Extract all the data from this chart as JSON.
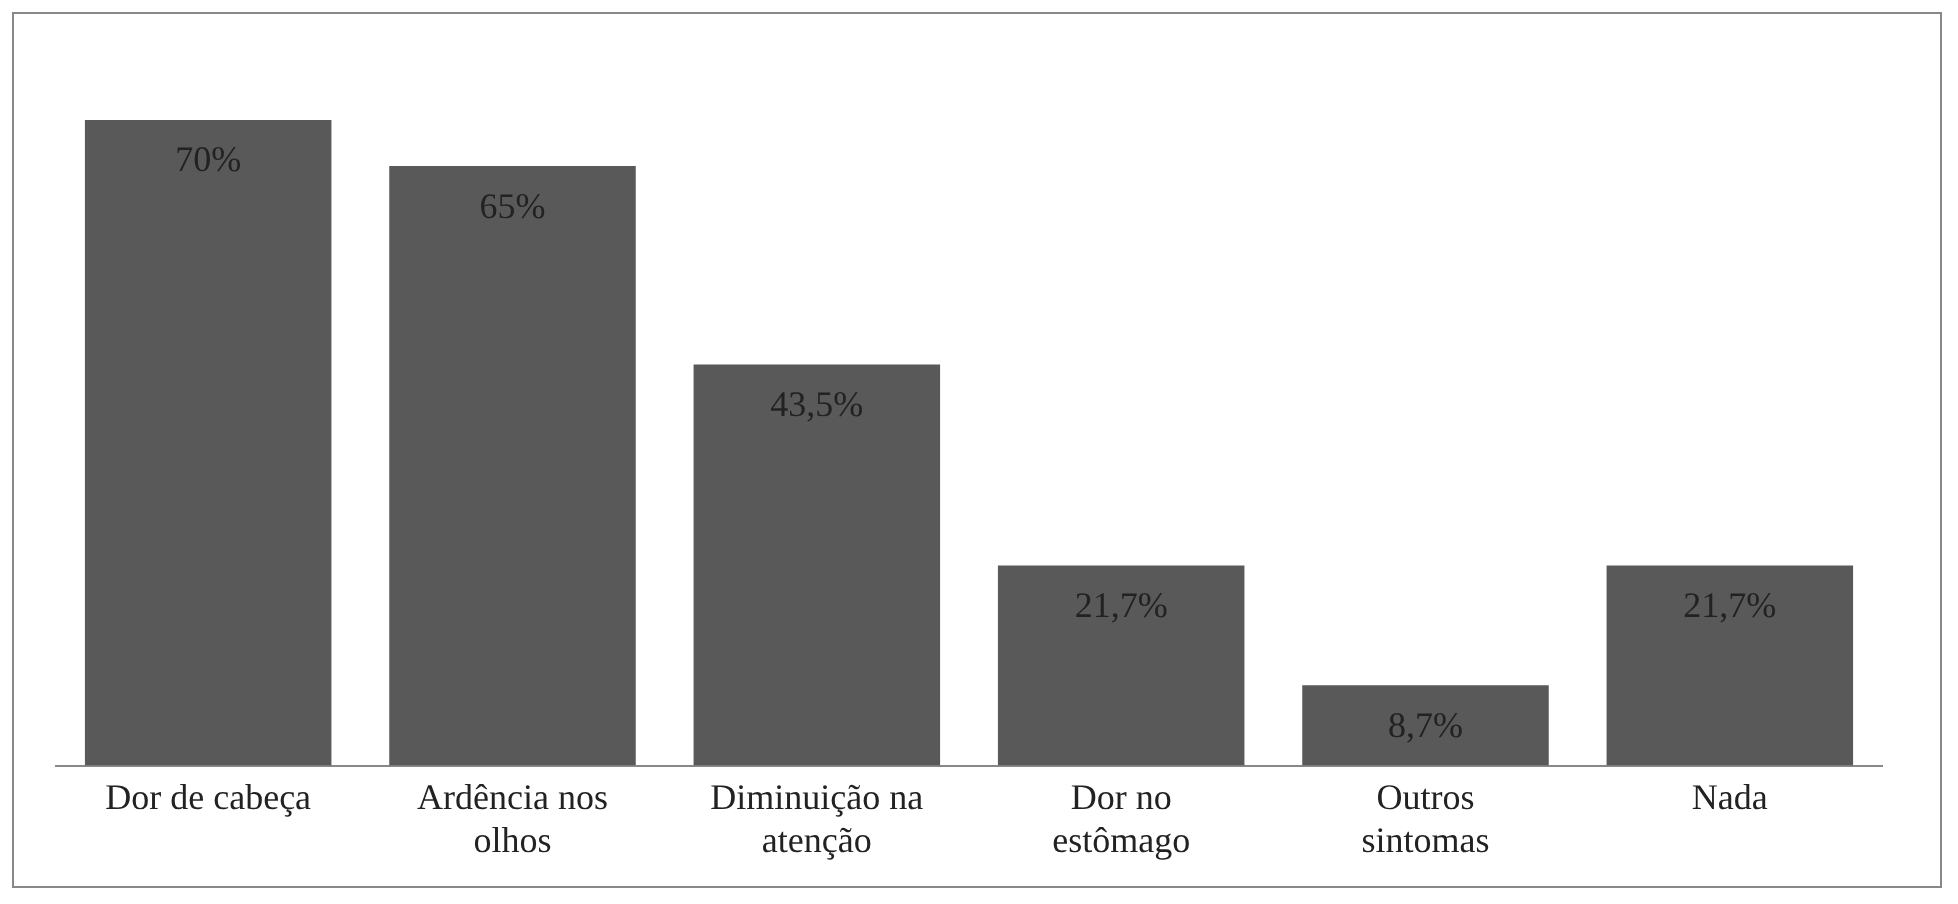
{
  "chart_data": {
    "type": "bar",
    "categories": [
      "Dor de cabeça",
      "Ardência nos olhos",
      "Diminuição na atenção",
      "Dor no estômago",
      "Outros sintomas",
      "Nada"
    ],
    "values": [
      70,
      65,
      43.5,
      21.7,
      8.7,
      21.7
    ],
    "value_labels": [
      "70%",
      "65%",
      "43,5%",
      "21,7%",
      "8,7%",
      "21,7%"
    ],
    "color": "#595959",
    "tick_labels": "x",
    "grid": false,
    "legend": false
  }
}
